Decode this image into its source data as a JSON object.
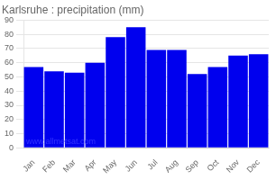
{
  "chart_data": {
    "type": "bar",
    "title": "Karlsruhe : precipitation (mm)",
    "categories": [
      "Jan",
      "Feb",
      "Mar",
      "Apr",
      "May",
      "Jun",
      "Jul",
      "Aug",
      "Sep",
      "Oct",
      "Nov",
      "Dec"
    ],
    "values": [
      57,
      54,
      53,
      60,
      78,
      85,
      69,
      69,
      52,
      57,
      65,
      66
    ],
    "color": "#0000ee",
    "ylim": [
      0,
      90
    ],
    "yticks": [
      0,
      10,
      20,
      30,
      40,
      50,
      60,
      70,
      80,
      90
    ],
    "grid": true,
    "annotations": [
      "www.allmetsat.com"
    ]
  }
}
